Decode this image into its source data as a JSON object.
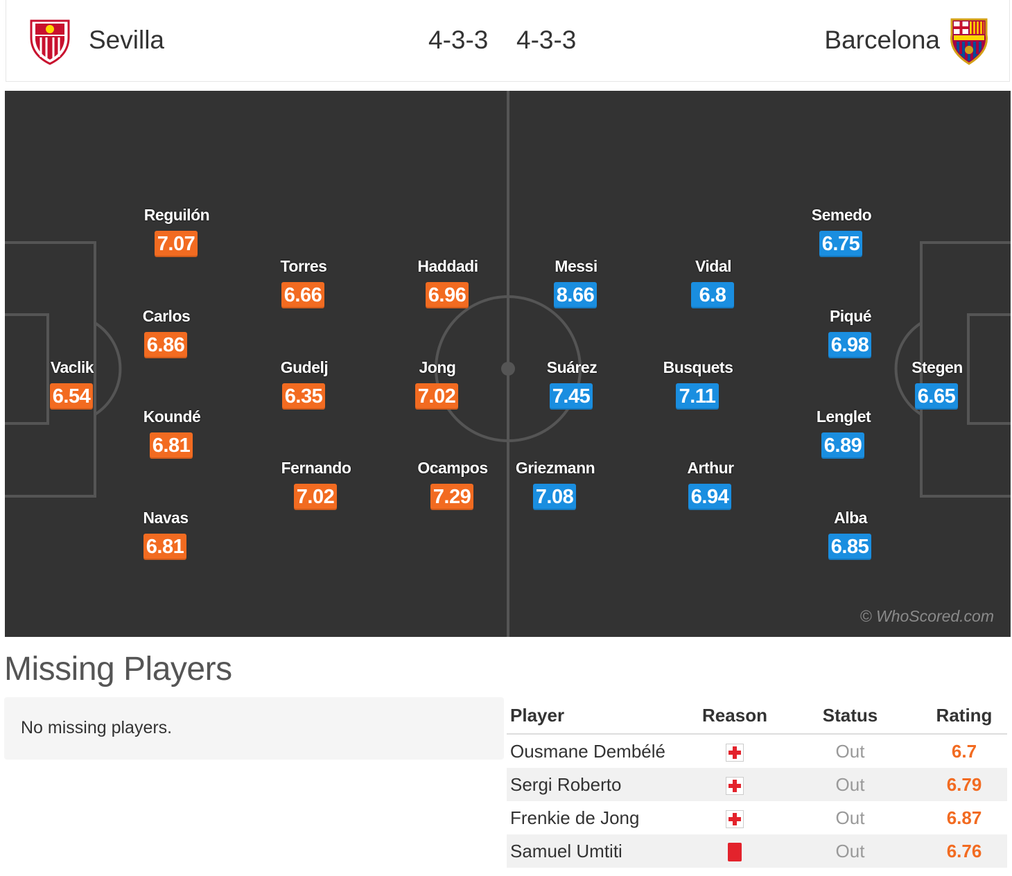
{
  "header": {
    "home_team": "Sevilla",
    "away_team": "Barcelona",
    "home_formation": "4-3-3",
    "away_formation": "4-3-3"
  },
  "colors": {
    "home_rating": "#f26b21",
    "away_rating": "#1a8ee0",
    "pitch": "#333333"
  },
  "pitch": {
    "watermark": "© WhoScored.com",
    "home_players": [
      {
        "name": "Vaclik",
        "rating": "6.54"
      },
      {
        "name": "Reguilón",
        "rating": "7.07"
      },
      {
        "name": "Carlos",
        "rating": "6.86"
      },
      {
        "name": "Koundé",
        "rating": "6.81"
      },
      {
        "name": "Navas",
        "rating": "6.81"
      },
      {
        "name": "Torres",
        "rating": "6.66"
      },
      {
        "name": "Gudelj",
        "rating": "6.35"
      },
      {
        "name": "Fernando",
        "rating": "7.02"
      },
      {
        "name": "Haddadi",
        "rating": "6.96"
      },
      {
        "name": "Jong",
        "rating": "7.02"
      },
      {
        "name": "Ocampos",
        "rating": "7.29"
      }
    ],
    "away_players": [
      {
        "name": "Messi",
        "rating": "8.66"
      },
      {
        "name": "Suárez",
        "rating": "7.45"
      },
      {
        "name": "Griezmann",
        "rating": "7.08"
      },
      {
        "name": "Vidal",
        "rating": "6.8"
      },
      {
        "name": "Busquets",
        "rating": "7.11"
      },
      {
        "name": "Arthur",
        "rating": "6.94"
      },
      {
        "name": "Semedo",
        "rating": "6.75"
      },
      {
        "name": "Piqué",
        "rating": "6.98"
      },
      {
        "name": "Lenglet",
        "rating": "6.89"
      },
      {
        "name": "Alba",
        "rating": "6.85"
      },
      {
        "name": "Stegen",
        "rating": "6.65"
      }
    ]
  },
  "missing": {
    "title": "Missing Players",
    "home_text": "No missing players.",
    "columns": {
      "player": "Player",
      "reason": "Reason",
      "status": "Status",
      "rating": "Rating"
    },
    "rows": [
      {
        "player": "Ousmane Dembélé",
        "reason_icon": "injury-icon",
        "status": "Out",
        "rating": "6.7"
      },
      {
        "player": "Sergi Roberto",
        "reason_icon": "injury-icon",
        "status": "Out",
        "rating": "6.79"
      },
      {
        "player": "Frenkie de Jong",
        "reason_icon": "injury-icon",
        "status": "Out",
        "rating": "6.87"
      },
      {
        "player": "Samuel Umtiti",
        "reason_icon": "red-card-icon",
        "status": "Out",
        "rating": "6.76"
      }
    ]
  }
}
